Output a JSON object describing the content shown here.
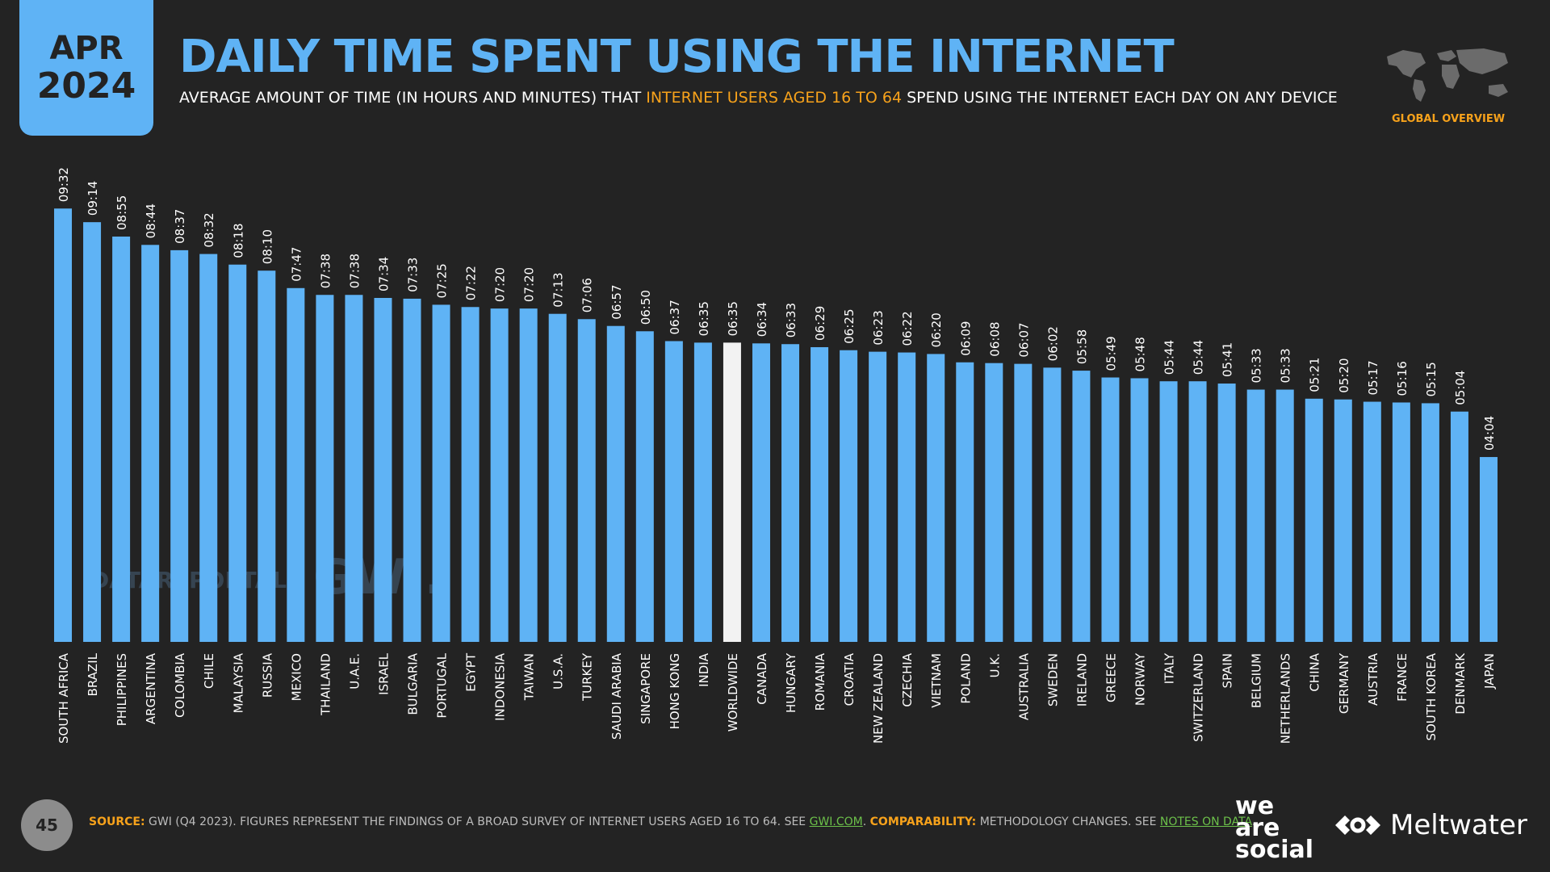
{
  "header": {
    "month": "APR",
    "year": "2024",
    "title": "DAILY TIME SPENT USING THE INTERNET",
    "subtitle_pre": "AVERAGE AMOUNT OF TIME (IN HOURS AND MINUTES) THAT ",
    "subtitle_highlight": "INTERNET USERS AGED 16 TO 64",
    "subtitle_post": " SPEND USING THE INTERNET EACH DAY ON ANY DEVICE",
    "badge": "GLOBAL OVERVIEW"
  },
  "watermarks": {
    "datareportal": "DATAREPORTAL",
    "gwi": "GWI."
  },
  "footer": {
    "page_number": "45",
    "source_key": "SOURCE:",
    "source_text": " GWI (Q4 2023). FIGURES REPRESENT THE FINDINGS OF A BROAD SURVEY OF INTERNET USERS AGED 16 TO 64. SEE ",
    "source_link": "GWI.COM",
    "source_sep": ". ",
    "comparability_key": "COMPARABILITY:",
    "comparability_text": " METHODOLOGY CHANGES. SEE ",
    "comparability_link": "NOTES ON DATA",
    "comparability_end": ".",
    "brand1_line1": "we",
    "brand1_line2": "are",
    "brand1_line3": "social",
    "brand2": "Meltwater"
  },
  "colors": {
    "accent": "#5fb3f5",
    "highlight": "#f7a21b",
    "background": "#232323",
    "worldwide_bar": "#f2f2f2"
  },
  "chart_data": {
    "type": "bar",
    "highlight_category": "WORLDWIDE",
    "categories": [
      "SOUTH AFRICA",
      "BRAZIL",
      "PHILIPPINES",
      "ARGENTINA",
      "COLOMBIA",
      "CHILE",
      "MALAYSIA",
      "RUSSIA",
      "MEXICO",
      "THAILAND",
      "U.A.E.",
      "ISRAEL",
      "BULGARIA",
      "PORTUGAL",
      "EGYPT",
      "INDONESIA",
      "TAIWAN",
      "U.S.A.",
      "TURKEY",
      "SAUDI ARABIA",
      "SINGAPORE",
      "HONG KONG",
      "INDIA",
      "WORLDWIDE",
      "CANADA",
      "HUNGARY",
      "ROMANIA",
      "CROATIA",
      "NEW ZEALAND",
      "CZECHIA",
      "VIETNAM",
      "POLAND",
      "U.K.",
      "AUSTRALIA",
      "SWEDEN",
      "IRELAND",
      "GREECE",
      "NORWAY",
      "ITALY",
      "SWITZERLAND",
      "SPAIN",
      "BELGIUM",
      "NETHERLANDS",
      "CHINA",
      "GERMANY",
      "AUSTRIA",
      "FRANCE",
      "SOUTH KOREA",
      "DENMARK",
      "JAPAN"
    ],
    "labels": [
      "09:32",
      "09:14",
      "08:55",
      "08:44",
      "08:37",
      "08:32",
      "08:18",
      "08:10",
      "07:47",
      "07:38",
      "07:38",
      "07:34",
      "07:33",
      "07:25",
      "07:22",
      "07:20",
      "07:20",
      "07:13",
      "07:06",
      "06:57",
      "06:50",
      "06:37",
      "06:35",
      "06:35",
      "06:34",
      "06:33",
      "06:29",
      "06:25",
      "06:23",
      "06:22",
      "06:20",
      "06:09",
      "06:08",
      "06:07",
      "06:02",
      "05:58",
      "05:49",
      "05:48",
      "05:44",
      "05:44",
      "05:41",
      "05:33",
      "05:33",
      "05:21",
      "05:20",
      "05:17",
      "05:16",
      "05:15",
      "05:04",
      "04:04"
    ],
    "values_minutes": [
      572,
      554,
      535,
      524,
      517,
      512,
      498,
      490,
      467,
      458,
      458,
      454,
      453,
      445,
      442,
      440,
      440,
      433,
      426,
      417,
      410,
      397,
      395,
      395,
      394,
      393,
      389,
      385,
      383,
      382,
      380,
      369,
      368,
      367,
      362,
      358,
      349,
      348,
      344,
      344,
      341,
      333,
      333,
      321,
      320,
      317,
      316,
      315,
      304,
      244
    ]
  }
}
